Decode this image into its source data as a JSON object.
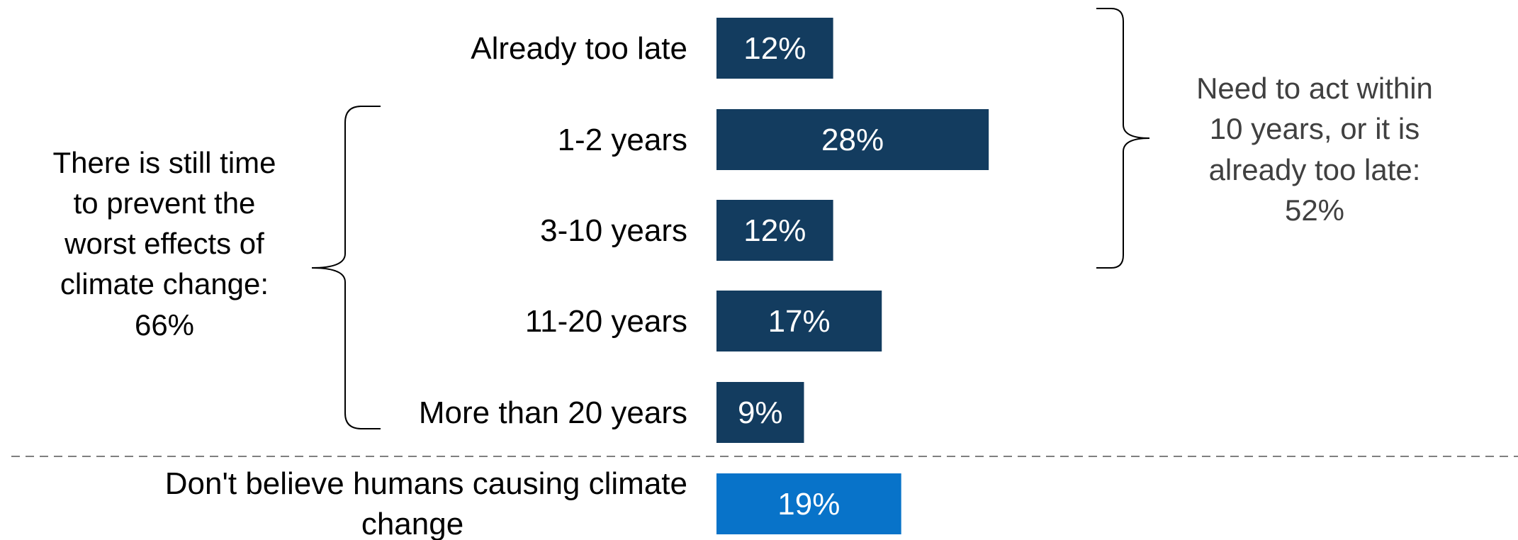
{
  "chart_data": {
    "type": "bar",
    "orientation": "horizontal",
    "categories": [
      [
        "Already too late"
      ],
      [
        "1-2 years"
      ],
      [
        "3-10 years"
      ],
      [
        "11-20 years"
      ],
      [
        "More than 20 years"
      ],
      [
        "Don't believe humans causing climate",
        "change"
      ]
    ],
    "values": [
      12,
      28,
      12,
      17,
      9,
      19
    ],
    "value_labels": [
      "12%",
      "28%",
      "12%",
      "17%",
      "9%",
      "19%"
    ],
    "xlim": [
      0,
      100
    ],
    "grid": false,
    "legend": "none",
    "colors": {
      "primary_bar": "#133c5f",
      "highlight_bar": "#0873c9",
      "highlight_index": 5,
      "annotation_text_left": "#000000",
      "annotation_text_right": "#404040",
      "separator": "#7f7f7f"
    },
    "annotations": {
      "left": {
        "lines": [
          "There is still time",
          "to prevent the",
          "worst effects of",
          "climate change:",
          "66%"
        ]
      },
      "right": {
        "lines": [
          "Need to act within",
          "10 years, or it is",
          "already too late:",
          "52%"
        ]
      }
    },
    "separator": "dashed line between 'More than 20 years' and 'Don't believe humans causing climate change'"
  }
}
